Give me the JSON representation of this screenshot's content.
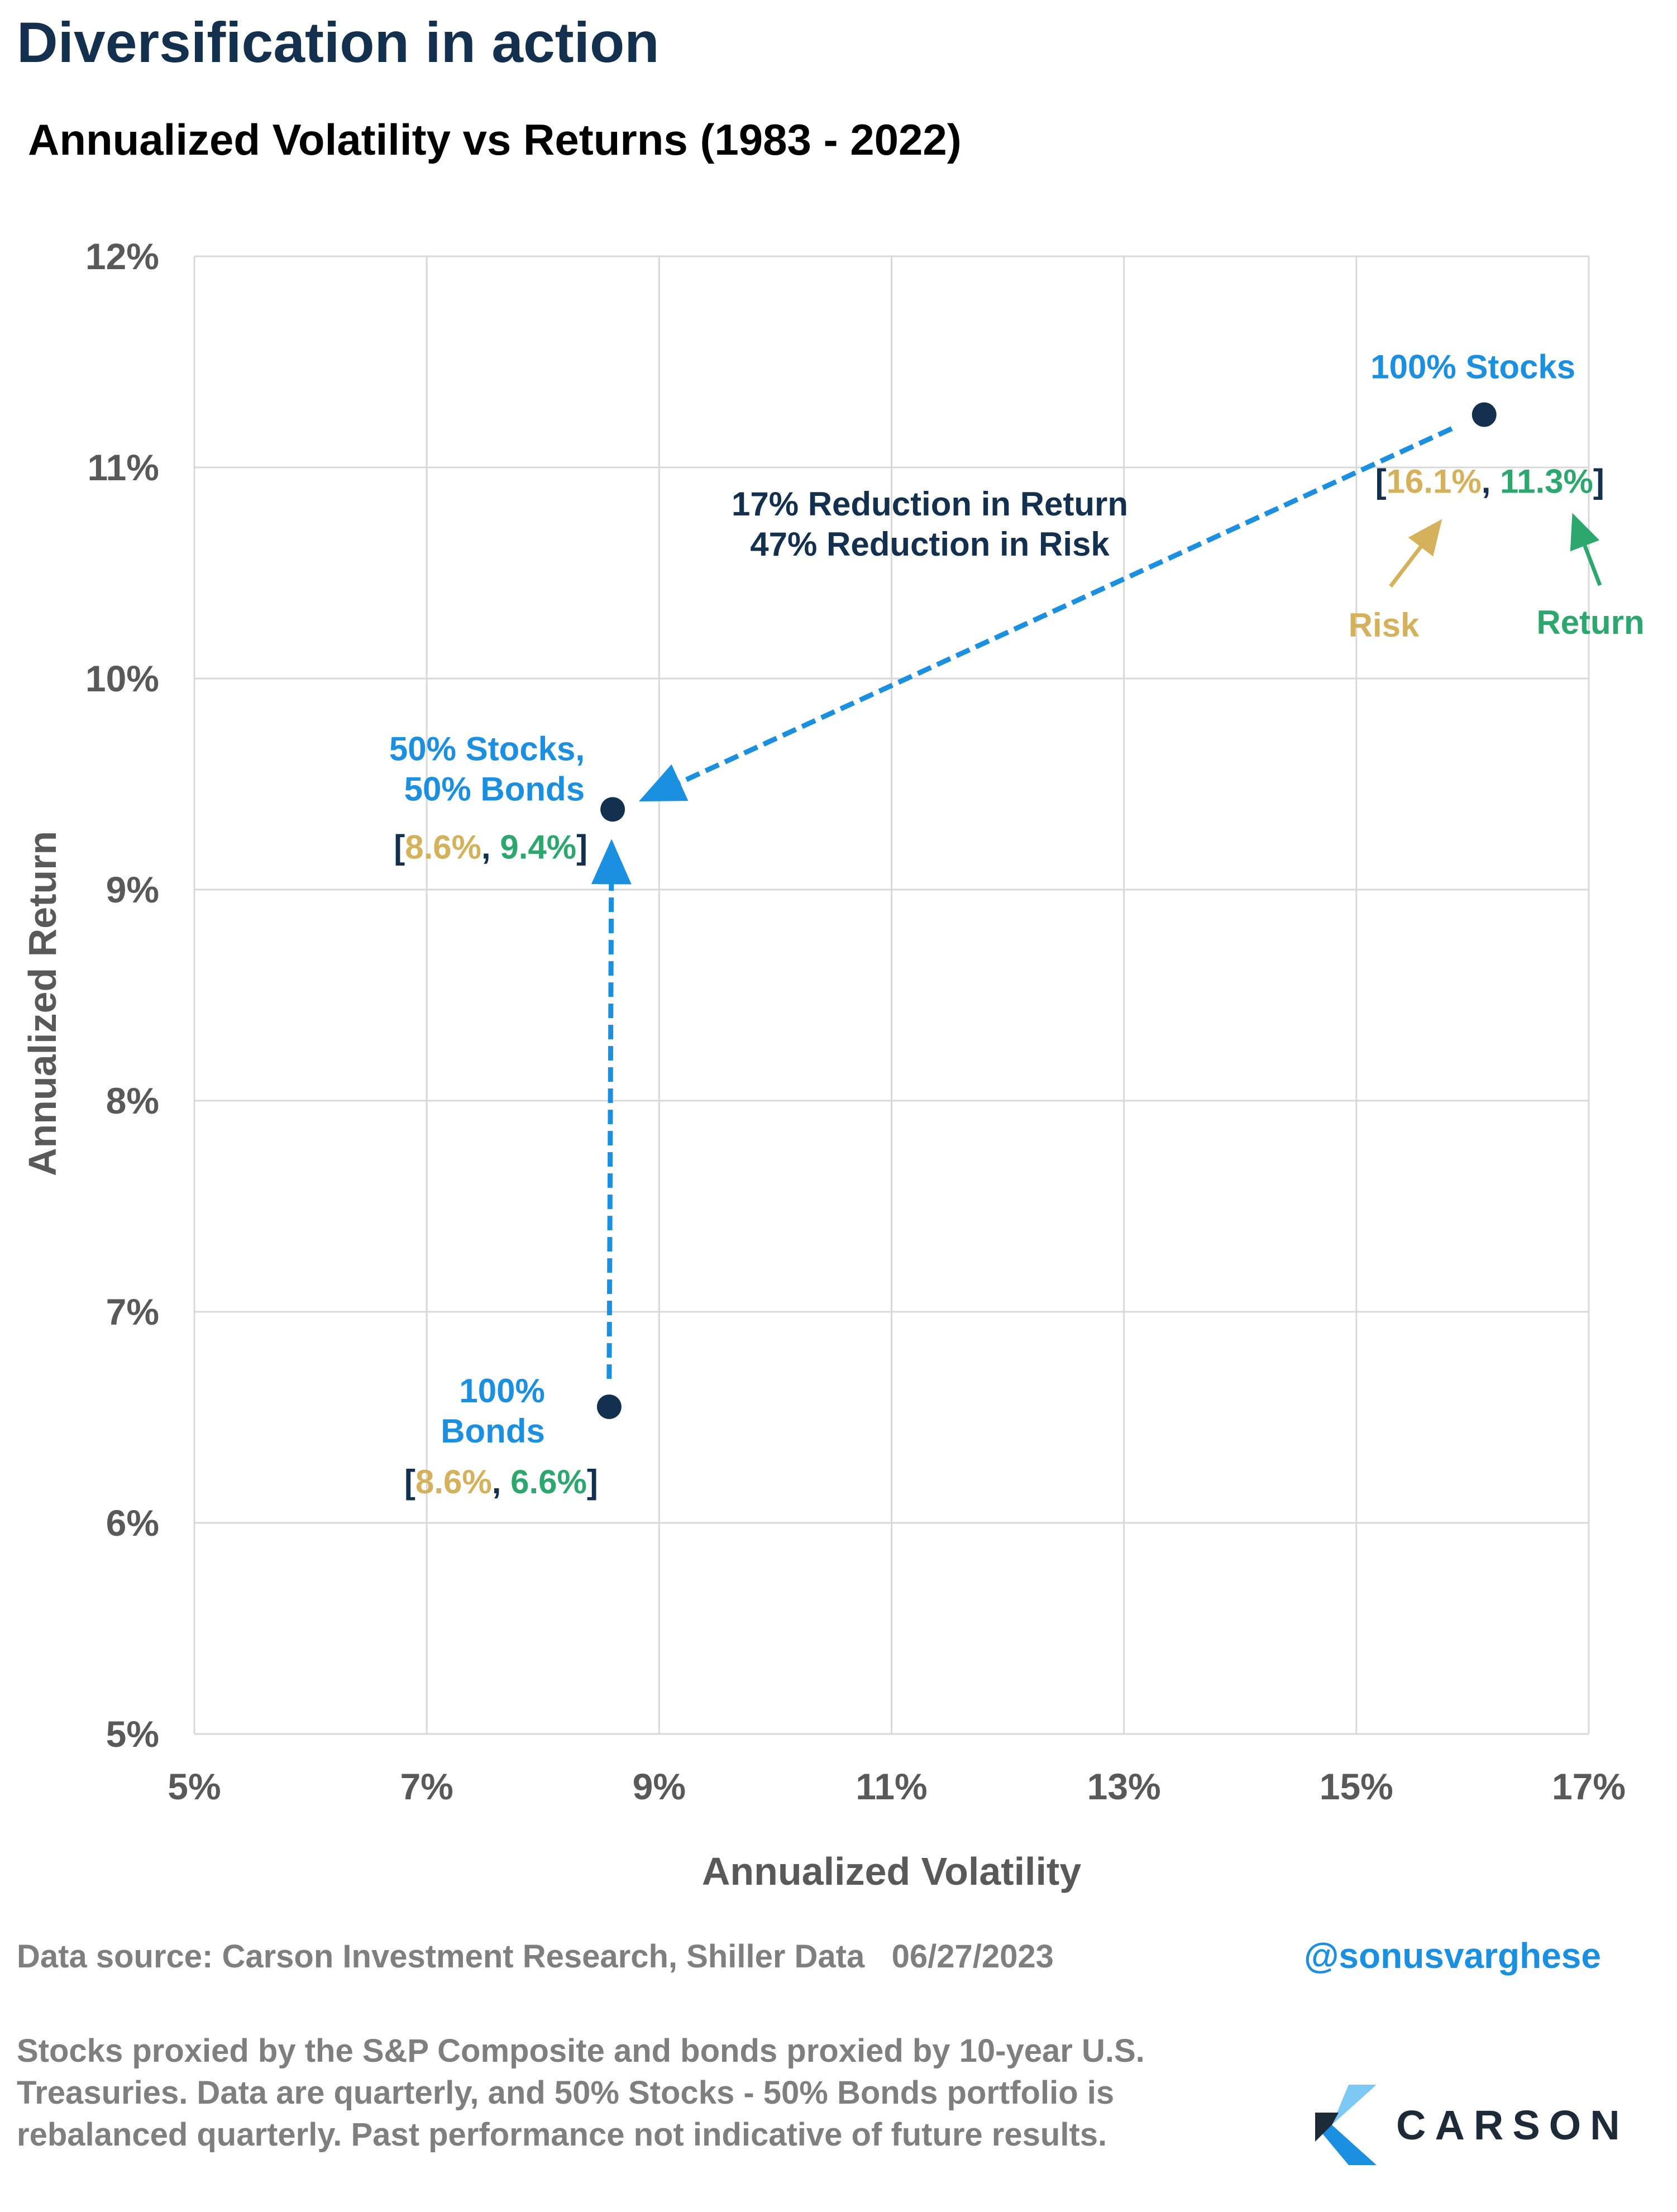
{
  "header": {
    "title": "Diversification in action",
    "subtitle": "Annualized Volatility vs Returns (1983 - 2022)"
  },
  "chart_data": {
    "type": "scatter",
    "xlabel": "Annualized Volatility",
    "ylabel": "Annualized Return",
    "xlim": [
      5,
      17
    ],
    "ylim": [
      5,
      12
    ],
    "x_ticks": [
      "5%",
      "7%",
      "9%",
      "11%",
      "13%",
      "15%",
      "17%"
    ],
    "x_tick_values": [
      5,
      7,
      9,
      11,
      13,
      15,
      17
    ],
    "y_ticks": [
      "5%",
      "6%",
      "7%",
      "8%",
      "9%",
      "10%",
      "11%",
      "12%"
    ],
    "y_tick_values": [
      5,
      6,
      7,
      8,
      9,
      10,
      11,
      12
    ],
    "grid": true,
    "points": [
      {
        "label_lines": [
          "100% Stocks"
        ],
        "x": 16.1,
        "y": 11.25,
        "risk": "16.1%",
        "ret": "11.3%"
      },
      {
        "label_lines": [
          "50% Stocks,",
          "50% Bonds"
        ],
        "x": 8.6,
        "y": 9.38,
        "risk": "8.6%",
        "ret": "9.4%"
      },
      {
        "label_lines": [
          "100%",
          "Bonds"
        ],
        "x": 8.57,
        "y": 6.55,
        "risk": "8.6%",
        "ret": "6.6%"
      }
    ],
    "annotations": {
      "reduction_lines": [
        "17% Reduction in Return",
        "47% Reduction in Risk"
      ],
      "risk_label": "Risk",
      "return_label": "Return"
    },
    "colors": {
      "point": "#13304f",
      "label": "#1b8fe0",
      "arrow": "#1b8fe0",
      "risk": "#d4b15a",
      "return": "#2ca86e",
      "bracket": "#13304f",
      "grid": "#d9d9d9",
      "tick": "#595959"
    }
  },
  "footer": {
    "source": "Data source: Carson Investment Research, Shiller Data   06/27/2023",
    "handle": "@sonusvarghese",
    "note": "Stocks proxied by the S&P Composite and bonds proxied by 10-year U.S. Treasuries. Data are quarterly, and 50% Stocks - 50% Bonds portfolio is rebalanced quarterly. Past performance not indicative of future results.",
    "logo_text": "CARSON"
  }
}
